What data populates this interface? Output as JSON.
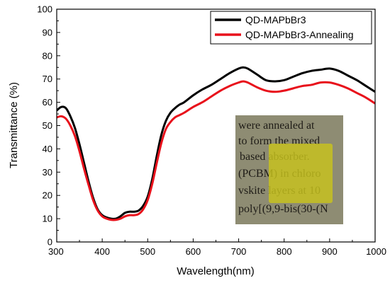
{
  "chart_data": {
    "type": "line",
    "title": "",
    "xlabel": "Wavelength(nm)",
    "ylabel": "Transmittance (%)",
    "xlim": [
      300,
      1000
    ],
    "ylim": [
      0,
      100
    ],
    "xticks": [
      "300",
      "400",
      "500",
      "600",
      "700",
      "800",
      "900",
      "1000"
    ],
    "yticks": [
      "0",
      "10",
      "20",
      "30",
      "40",
      "50",
      "60",
      "70",
      "80",
      "90",
      "100"
    ],
    "grid": false,
    "legend_position": "top-right",
    "series": [
      {
        "name": "QD-MAPbBr3",
        "color": "#000000",
        "x": [
          300,
          310,
          320,
          330,
          340,
          350,
          360,
          370,
          380,
          390,
          400,
          410,
          420,
          430,
          440,
          450,
          460,
          470,
          480,
          490,
          500,
          510,
          520,
          530,
          540,
          550,
          560,
          570,
          580,
          600,
          620,
          640,
          660,
          680,
          700,
          710,
          720,
          740,
          760,
          780,
          800,
          820,
          840,
          860,
          880,
          900,
          920,
          940,
          960,
          980,
          1000
        ],
        "y": [
          56.5,
          58,
          57.5,
          54,
          49,
          42,
          34,
          26,
          19,
          14,
          11.5,
          10.5,
          10,
          10,
          11,
          12.5,
          13,
          13,
          13.5,
          15.5,
          19.5,
          27,
          37,
          46,
          52,
          55.5,
          57.5,
          59,
          60,
          63,
          65.5,
          67.5,
          70,
          72.5,
          74.5,
          75,
          74.5,
          72,
          69.5,
          69,
          69.5,
          71,
          72.5,
          73.5,
          74,
          74.5,
          73.5,
          71.5,
          69.5,
          67,
          64.5
        ]
      },
      {
        "name": "QD-MAPbBr3-Annealing",
        "color": "#e8111b",
        "x": [
          300,
          310,
          320,
          330,
          340,
          350,
          360,
          370,
          380,
          390,
          400,
          410,
          420,
          430,
          440,
          450,
          460,
          470,
          480,
          490,
          500,
          510,
          520,
          530,
          540,
          550,
          560,
          570,
          580,
          600,
          620,
          640,
          660,
          680,
          700,
          710,
          720,
          740,
          760,
          780,
          800,
          820,
          840,
          860,
          880,
          900,
          920,
          940,
          960,
          980,
          1000
        ],
        "y": [
          53.5,
          54,
          53,
          50,
          45.5,
          39,
          31.5,
          24.5,
          18,
          13.5,
          11,
          10,
          9.5,
          9.5,
          10,
          11,
          11.5,
          11.5,
          12,
          14,
          18,
          25,
          34,
          42.5,
          48.5,
          51.5,
          53.5,
          54.5,
          55.5,
          58,
          60,
          62.5,
          65,
          67,
          68.5,
          69,
          68.5,
          66.5,
          65,
          64.5,
          65,
          66,
          67,
          67.5,
          68.5,
          68.5,
          67.5,
          66,
          64,
          62,
          59.5
        ]
      }
    ],
    "inset": {
      "image_type": "photo-of-film-on-printed-text",
      "text_lines": [
        "were annealed at",
        "to form the mixed",
        "based absorber.",
        "(PCBM) in chloro",
        "vskite layers at 10",
        "poly[(9,9-bis(30-(N"
      ],
      "film_color": "#c9c21d",
      "background_color": "#8d8b72"
    }
  }
}
